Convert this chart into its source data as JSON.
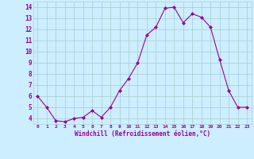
{
  "x": [
    0,
    1,
    2,
    3,
    4,
    5,
    6,
    7,
    8,
    9,
    10,
    11,
    12,
    13,
    14,
    15,
    16,
    17,
    18,
    19,
    20,
    21,
    22,
    23
  ],
  "y": [
    6.0,
    5.0,
    3.8,
    3.7,
    4.0,
    4.1,
    4.7,
    4.1,
    5.0,
    6.5,
    7.6,
    9.0,
    11.5,
    12.2,
    13.9,
    14.0,
    12.6,
    13.4,
    13.1,
    12.2,
    9.3,
    6.5,
    5.0,
    5.0
  ],
  "line_color": "#990099",
  "marker": "D",
  "marker_size": 2.0,
  "background_color": "#cceeff",
  "grid_color": "#aad4d4",
  "xlabel": "Windchill (Refroidissement éolien,°C)",
  "xlabel_color": "#990099",
  "tick_color": "#990099",
  "ylim": [
    3.5,
    14.5
  ],
  "xlim": [
    -0.5,
    23.5
  ],
  "yticks": [
    4,
    5,
    6,
    7,
    8,
    9,
    10,
    11,
    12,
    13,
    14
  ],
  "xticks": [
    0,
    1,
    2,
    3,
    4,
    5,
    6,
    7,
    8,
    9,
    10,
    11,
    12,
    13,
    14,
    15,
    16,
    17,
    18,
    19,
    20,
    21,
    22,
    23
  ]
}
